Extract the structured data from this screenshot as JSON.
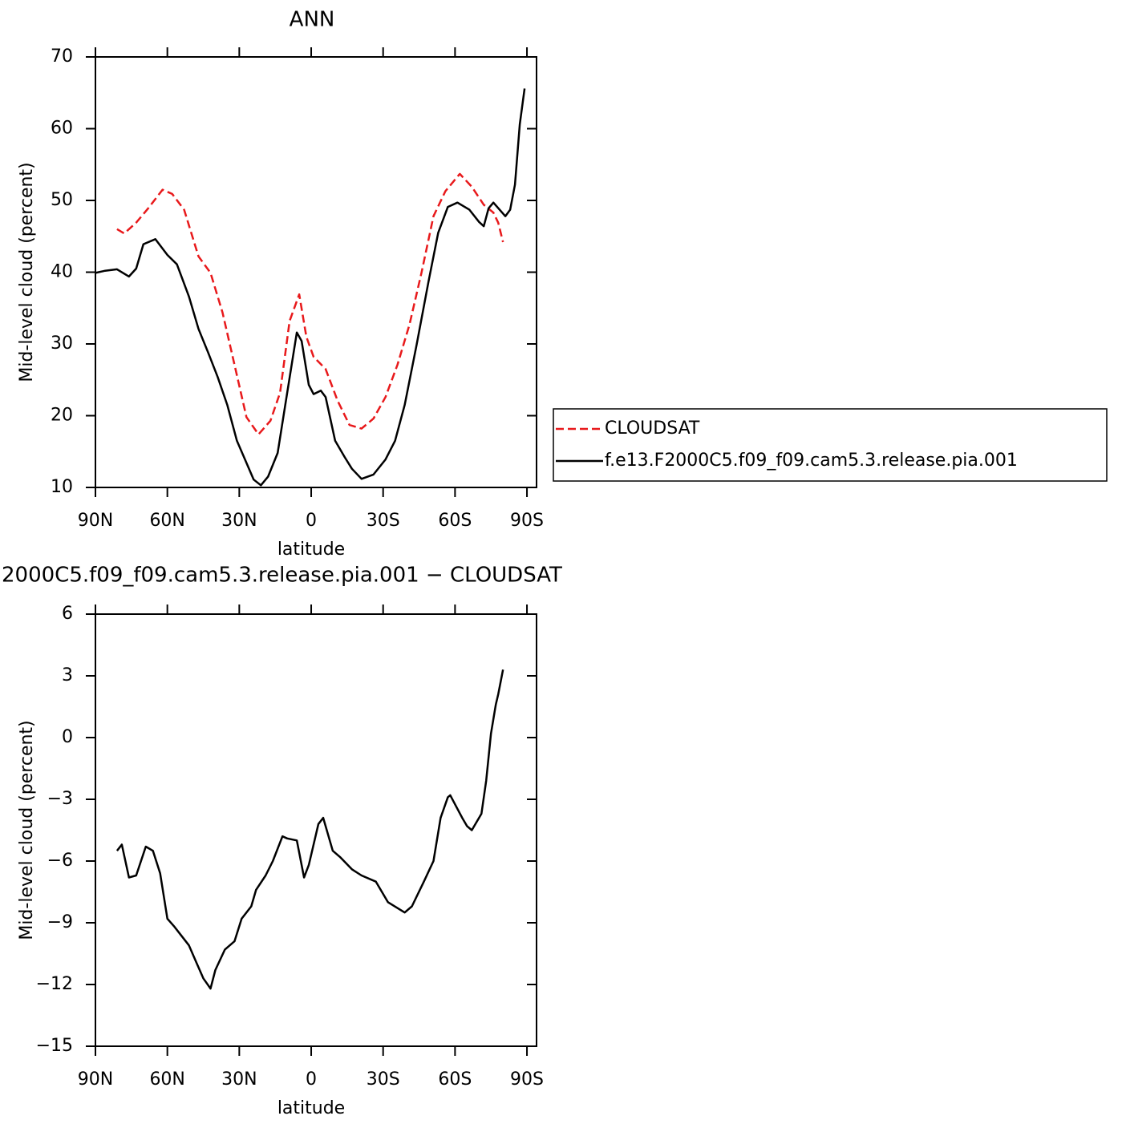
{
  "chart_data": [
    {
      "type": "line",
      "title": "ANN",
      "xlabel": "latitude",
      "ylabel": "Mid-level cloud (percent)",
      "xlim": [
        90,
        -94
      ],
      "ylim": [
        10,
        70
      ],
      "xticks": [
        {
          "value": 90,
          "label": "90N"
        },
        {
          "value": 60,
          "label": "60N"
        },
        {
          "value": 30,
          "label": "30N"
        },
        0,
        {
          "value": -30,
          "label": "30S"
        },
        {
          "value": -60,
          "label": "60S"
        },
        {
          "value": -90,
          "label": "90S"
        }
      ],
      "yticks": [
        10,
        20,
        30,
        40,
        50,
        60,
        70
      ],
      "legend": "right",
      "series": [
        {
          "name": "CLOUDSAT",
          "color": "#e8191b",
          "dash": true,
          "x": [
            81,
            78,
            73,
            68,
            62,
            58,
            53,
            47,
            42,
            37,
            32,
            27,
            22,
            17,
            13,
            9,
            5,
            2,
            -1,
            -6,
            -11,
            -16,
            -21,
            -26,
            -31,
            -36,
            -41,
            -46,
            -51,
            -56,
            -62,
            -67,
            -72,
            -76,
            -78,
            -80
          ],
          "values": [
            46.0,
            45.4,
            46.9,
            48.9,
            51.5,
            50.9,
            48.7,
            42.2,
            39.9,
            34.4,
            27.1,
            19.8,
            17.4,
            19.3,
            23.2,
            33.2,
            36.9,
            31.0,
            28.2,
            26.5,
            22.1,
            18.7,
            18.2,
            19.6,
            22.6,
            27.1,
            32.7,
            39.9,
            47.8,
            51.3,
            53.7,
            51.9,
            49.4,
            48.3,
            46.9,
            44.2
          ]
        },
        {
          "name": "f.e13.F2000C5.f09_f09.cam5.3.release.pia.001",
          "color": "#000000",
          "dash": false,
          "x": [
            90,
            86,
            81,
            76,
            73,
            70,
            65,
            60,
            56,
            51,
            47,
            43,
            39,
            35,
            31,
            28,
            24,
            21,
            18,
            14,
            10,
            6,
            4,
            1,
            -1,
            -4,
            -6,
            -10,
            -14,
            -17,
            -21,
            -26,
            -31,
            -35,
            -39,
            -44,
            -49,
            -53,
            -57,
            -61,
            -66,
            -70,
            -72,
            -74,
            -76,
            -81,
            -83,
            -85,
            -87,
            -89
          ],
          "values": [
            39.9,
            40.2,
            40.4,
            39.4,
            40.5,
            43.9,
            44.6,
            42.4,
            41.1,
            36.6,
            32.1,
            28.8,
            25.4,
            21.5,
            16.5,
            14.2,
            11.1,
            10.3,
            11.5,
            14.8,
            23.2,
            31.6,
            30.4,
            24.3,
            23.0,
            23.5,
            22.6,
            16.5,
            14.2,
            12.6,
            11.2,
            11.8,
            13.9,
            16.5,
            21.5,
            29.9,
            38.8,
            45.5,
            49.1,
            49.7,
            48.7,
            47.0,
            46.4,
            48.9,
            49.7,
            47.8,
            48.7,
            52.2,
            60.6,
            65.6
          ]
        }
      ]
    },
    {
      "type": "line",
      "title": "2000C5.f09_f09.cam5.3.release.pia.001  −  CLOUDSAT",
      "xlabel": "latitude",
      "ylabel": "Mid-level cloud (percent)",
      "xlim": [
        90,
        -94
      ],
      "ylim": [
        -15,
        6
      ],
      "xticks": [
        {
          "value": 90,
          "label": "90N"
        },
        {
          "value": 60,
          "label": "60N"
        },
        {
          "value": 30,
          "label": "30N"
        },
        0,
        {
          "value": -30,
          "label": "30S"
        },
        {
          "value": -60,
          "label": "60S"
        },
        {
          "value": -90,
          "label": "90S"
        }
      ],
      "yticks": [
        {
          "value": -15,
          "label": "−15"
        },
        {
          "value": -12,
          "label": "−12"
        },
        {
          "value": -9,
          "label": "−9"
        },
        {
          "value": -6,
          "label": "−6"
        },
        {
          "value": -3,
          "label": "−3"
        },
        0,
        3,
        6
      ],
      "color": "#000000",
      "x": [
        81,
        79,
        76,
        73,
        69,
        66,
        63,
        60,
        57,
        55,
        51,
        48,
        45,
        42,
        40,
        36,
        32,
        29,
        25,
        23,
        19,
        16,
        12,
        10,
        6,
        3,
        1,
        -3,
        -5,
        -9,
        -12,
        -17,
        -21,
        -27,
        -32,
        -39,
        -42,
        -47,
        -51,
        -54,
        -57,
        -58,
        -63,
        -65,
        -67,
        -71,
        -73,
        -75,
        -77,
        -78,
        -80
      ],
      "values": [
        -5.5,
        -5.2,
        -6.8,
        -6.7,
        -5.3,
        -5.5,
        -6.6,
        -8.8,
        -9.2,
        -9.5,
        -10.1,
        -10.9,
        -11.7,
        -12.2,
        -11.3,
        -10.3,
        -9.9,
        -8.8,
        -8.2,
        -7.4,
        -6.7,
        -6.0,
        -4.8,
        -4.9,
        -5.0,
        -6.8,
        -6.2,
        -4.2,
        -3.9,
        -5.5,
        -5.8,
        -6.4,
        -6.7,
        -7.0,
        -8.0,
        -8.5,
        -8.2,
        -7.0,
        -6.0,
        -3.9,
        -2.9,
        -2.8,
        -3.9,
        -4.3,
        -4.5,
        -3.7,
        -2.1,
        0.2,
        1.6,
        2.1,
        3.3
      ]
    }
  ]
}
